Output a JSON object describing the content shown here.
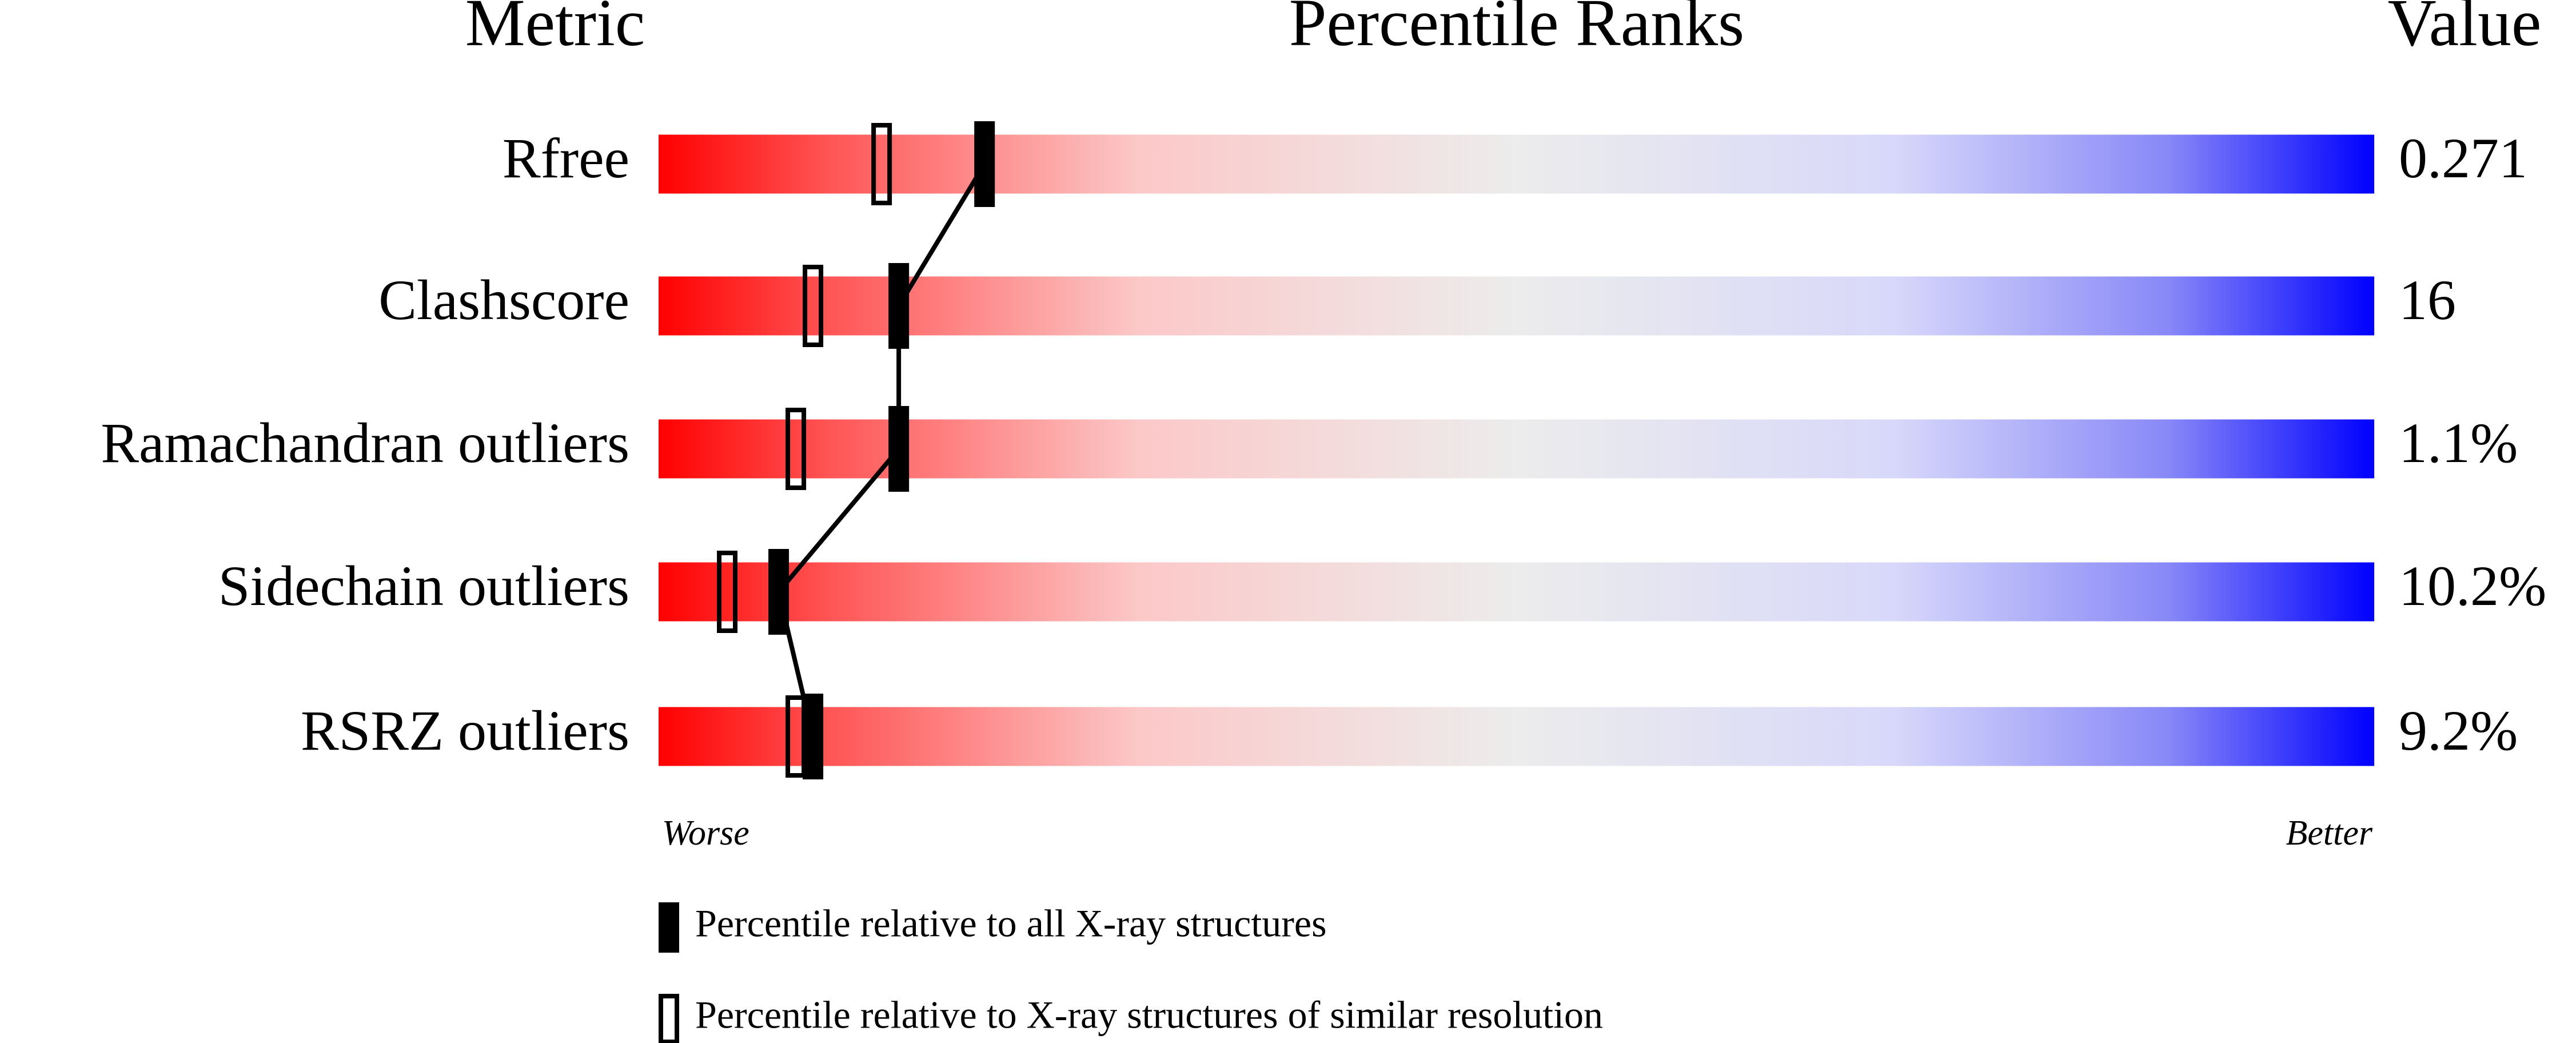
{
  "chart_data": {
    "type": "percentile-slider",
    "title": "Percentile Ranks",
    "metric_header": "Metric",
    "value_header": "Value",
    "categories": [
      "Rfree",
      "Clashscore",
      "Ramachandran outliers",
      "Sidechain outliers",
      "RSRZ outliers"
    ],
    "value_column": [
      "0.271",
      "16",
      "1.1%",
      "10.2%",
      "9.2%"
    ],
    "series": [
      {
        "name": "Percentile relative to all X-ray structures",
        "color": "#000000",
        "filled": true,
        "values": [
          19,
          14,
          14,
          7,
          9
        ]
      },
      {
        "name": "Percentile relative to X-ray structures of similar resolution",
        "color": "#000000",
        "filled": false,
        "values": [
          13,
          9,
          8,
          4,
          8
        ]
      }
    ],
    "xlim": [
      0,
      100
    ],
    "low_label": "Worse",
    "high_label": "Better"
  }
}
